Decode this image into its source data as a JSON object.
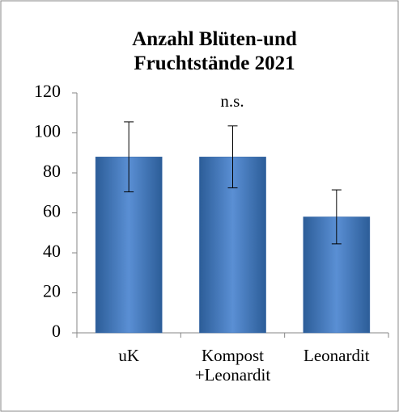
{
  "chart_data": {
    "type": "bar",
    "title": "Anzahl Blüten-und\nFruchtstände 2021",
    "annotation": "n.s.",
    "categories": [
      "uK",
      "Kompost\n+Leonardit",
      "Leonardit"
    ],
    "values": [
      88,
      88,
      58
    ],
    "errors": [
      17.5,
      15.5,
      13.5
    ],
    "color": "#4f81bd",
    "ylim": [
      0,
      120
    ],
    "yticks": [
      0,
      20,
      40,
      60,
      80,
      100,
      120
    ],
    "grid": false
  }
}
